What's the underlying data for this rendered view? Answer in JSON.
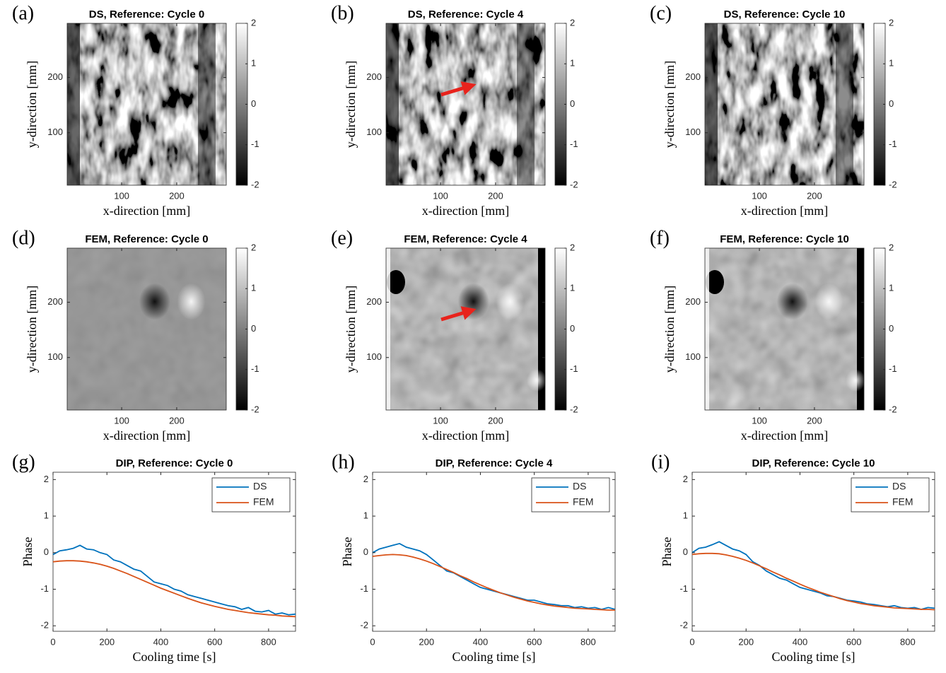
{
  "chart_data": [
    {
      "type": "heatmap",
      "panel": "(a)",
      "title": "DS, Reference: Cycle 0",
      "xlabel": "x-direction [mm]",
      "ylabel": "y-direction [mm]",
      "xlim": [
        1,
        290
      ],
      "ylim": [
        5,
        298
      ],
      "xticks": [
        100,
        200
      ],
      "yticks": [
        100,
        200
      ],
      "clim": [
        -2,
        2
      ],
      "cticks": [
        -2,
        -1,
        0,
        1,
        2
      ]
    },
    {
      "type": "heatmap",
      "panel": "(b)",
      "title": "DS, Reference: Cycle 4",
      "xlabel": "x-direction [mm]",
      "ylabel": "y-direction [mm]",
      "xlim": [
        1,
        290
      ],
      "ylim": [
        5,
        298
      ],
      "xticks": [
        100,
        200
      ],
      "yticks": [
        100,
        200
      ],
      "clim": [
        -2,
        2
      ],
      "cticks": [
        -2,
        -1,
        0,
        1,
        2
      ]
    },
    {
      "type": "heatmap",
      "panel": "(c)",
      "title": "DS, Reference: Cycle 10",
      "xlabel": "x-direction [mm]",
      "ylabel": "y-direction [mm]",
      "xlim": [
        1,
        290
      ],
      "ylim": [
        5,
        298
      ],
      "xticks": [
        100,
        200
      ],
      "yticks": [
        100,
        200
      ],
      "clim": [
        -2,
        2
      ],
      "cticks": [
        -2,
        -1,
        0,
        1,
        2
      ]
    },
    {
      "type": "heatmap",
      "panel": "(d)",
      "title": "FEM, Reference: Cycle 0",
      "xlabel": "x-direction [mm]",
      "ylabel": "y-direction [mm]",
      "xlim": [
        1,
        290
      ],
      "ylim": [
        5,
        298
      ],
      "xticks": [
        100,
        200
      ],
      "yticks": [
        100,
        200
      ],
      "clim": [
        -2,
        2
      ],
      "cticks": [
        -2,
        -1,
        0,
        1,
        2
      ]
    },
    {
      "type": "heatmap",
      "panel": "(e)",
      "title": "FEM, Reference: Cycle 4",
      "xlabel": "x-direction [mm]",
      "ylabel": "y-direction [mm]",
      "xlim": [
        1,
        290
      ],
      "ylim": [
        5,
        298
      ],
      "xticks": [
        100,
        200
      ],
      "yticks": [
        100,
        200
      ],
      "clim": [
        -2,
        2
      ],
      "cticks": [
        -2,
        -1,
        0,
        1,
        2
      ]
    },
    {
      "type": "heatmap",
      "panel": "(f)",
      "title": "FEM, Reference: Cycle 10",
      "xlabel": "x-direction [mm]",
      "ylabel": "y-direction [mm]",
      "xlim": [
        1,
        290
      ],
      "ylim": [
        5,
        298
      ],
      "xticks": [
        100,
        200
      ],
      "yticks": [
        100,
        200
      ],
      "clim": [
        -2,
        2
      ],
      "cticks": [
        -2,
        -1,
        0,
        1,
        2
      ]
    },
    {
      "type": "line",
      "panel": "(g)",
      "title": "DIP, Reference: Cycle 0",
      "xlabel": "Cooling time [s]",
      "ylabel": "Phase",
      "xlim": [
        0,
        900
      ],
      "ylim": [
        -2.15,
        2.2
      ],
      "xticks": [
        0,
        200,
        400,
        600,
        800
      ],
      "yticks": [
        -2,
        -1,
        0,
        1,
        2
      ],
      "legend": "upper right",
      "x": [
        0,
        25,
        50,
        75,
        100,
        125,
        150,
        175,
        200,
        225,
        250,
        275,
        300,
        325,
        350,
        375,
        400,
        425,
        450,
        475,
        500,
        525,
        550,
        575,
        600,
        625,
        650,
        675,
        700,
        725,
        750,
        775,
        800,
        825,
        850,
        875,
        900
      ],
      "series": [
        {
          "name": "DS",
          "color": "#0072BD",
          "values": [
            -0.05,
            0.05,
            0.08,
            0.12,
            0.2,
            0.1,
            0.08,
            0.0,
            -0.05,
            -0.2,
            -0.25,
            -0.35,
            -0.45,
            -0.5,
            -0.65,
            -0.8,
            -0.85,
            -0.9,
            -1.0,
            -1.05,
            -1.15,
            -1.2,
            -1.25,
            -1.3,
            -1.35,
            -1.4,
            -1.45,
            -1.48,
            -1.55,
            -1.5,
            -1.6,
            -1.62,
            -1.58,
            -1.68,
            -1.65,
            -1.7,
            -1.68
          ]
        },
        {
          "name": "FEM",
          "color": "#D95319",
          "values": [
            -0.25,
            -0.23,
            -0.22,
            -0.22,
            -0.23,
            -0.25,
            -0.28,
            -0.32,
            -0.37,
            -0.43,
            -0.5,
            -0.57,
            -0.65,
            -0.73,
            -0.81,
            -0.89,
            -0.97,
            -1.04,
            -1.11,
            -1.18,
            -1.25,
            -1.31,
            -1.37,
            -1.42,
            -1.47,
            -1.51,
            -1.55,
            -1.58,
            -1.61,
            -1.64,
            -1.66,
            -1.68,
            -1.7,
            -1.71,
            -1.73,
            -1.74,
            -1.75
          ]
        }
      ]
    },
    {
      "type": "line",
      "panel": "(h)",
      "title": "DIP, Reference: Cycle 4",
      "xlabel": "Cooling time [s]",
      "ylabel": "Phase",
      "xlim": [
        0,
        900
      ],
      "ylim": [
        -2.15,
        2.2
      ],
      "xticks": [
        0,
        200,
        400,
        600,
        800
      ],
      "yticks": [
        -2,
        -1,
        0,
        1,
        2
      ],
      "legend": "upper right",
      "x": [
        0,
        25,
        50,
        75,
        100,
        125,
        150,
        175,
        200,
        225,
        250,
        275,
        300,
        325,
        350,
        375,
        400,
        425,
        450,
        475,
        500,
        525,
        550,
        575,
        600,
        625,
        650,
        675,
        700,
        725,
        750,
        775,
        800,
        825,
        850,
        875,
        900
      ],
      "series": [
        {
          "name": "DS",
          "color": "#0072BD",
          "values": [
            0.0,
            0.1,
            0.15,
            0.2,
            0.25,
            0.15,
            0.1,
            0.05,
            -0.05,
            -0.2,
            -0.35,
            -0.5,
            -0.55,
            -0.65,
            -0.75,
            -0.85,
            -0.95,
            -1.0,
            -1.05,
            -1.1,
            -1.15,
            -1.2,
            -1.25,
            -1.3,
            -1.3,
            -1.35,
            -1.4,
            -1.42,
            -1.45,
            -1.45,
            -1.5,
            -1.48,
            -1.52,
            -1.5,
            -1.55,
            -1.5,
            -1.55
          ]
        },
        {
          "name": "FEM",
          "color": "#D95319",
          "values": [
            -0.1,
            -0.08,
            -0.06,
            -0.05,
            -0.06,
            -0.08,
            -0.12,
            -0.17,
            -0.23,
            -0.3,
            -0.38,
            -0.46,
            -0.54,
            -0.63,
            -0.71,
            -0.8,
            -0.88,
            -0.96,
            -1.03,
            -1.1,
            -1.16,
            -1.22,
            -1.27,
            -1.32,
            -1.36,
            -1.4,
            -1.43,
            -1.46,
            -1.48,
            -1.5,
            -1.52,
            -1.53,
            -1.54,
            -1.55,
            -1.56,
            -1.57,
            -1.57
          ]
        }
      ]
    },
    {
      "type": "line",
      "panel": "(i)",
      "title": "DIP, Reference: Cycle 10",
      "xlabel": "Cooling time [s]",
      "ylabel": "Phase",
      "xlim": [
        0,
        900
      ],
      "ylim": [
        -2.15,
        2.2
      ],
      "xticks": [
        0,
        200,
        400,
        600,
        800
      ],
      "yticks": [
        -2,
        -1,
        0,
        1,
        2
      ],
      "legend": "upper right",
      "x": [
        0,
        25,
        50,
        75,
        100,
        125,
        150,
        175,
        200,
        225,
        250,
        275,
        300,
        325,
        350,
        375,
        400,
        425,
        450,
        475,
        500,
        525,
        550,
        575,
        600,
        625,
        650,
        675,
        700,
        725,
        750,
        775,
        800,
        825,
        850,
        875,
        900
      ],
      "series": [
        {
          "name": "DS",
          "color": "#0072BD",
          "values": [
            0.0,
            0.12,
            0.15,
            0.22,
            0.3,
            0.2,
            0.1,
            0.05,
            -0.05,
            -0.25,
            -0.35,
            -0.5,
            -0.6,
            -0.7,
            -0.75,
            -0.85,
            -0.95,
            -1.0,
            -1.05,
            -1.1,
            -1.18,
            -1.2,
            -1.25,
            -1.3,
            -1.32,
            -1.35,
            -1.4,
            -1.42,
            -1.45,
            -1.48,
            -1.45,
            -1.5,
            -1.52,
            -1.5,
            -1.55,
            -1.5,
            -1.52
          ]
        },
        {
          "name": "FEM",
          "color": "#D95319",
          "values": [
            -0.05,
            -0.03,
            -0.02,
            -0.02,
            -0.03,
            -0.06,
            -0.1,
            -0.15,
            -0.21,
            -0.28,
            -0.36,
            -0.44,
            -0.53,
            -0.61,
            -0.7,
            -0.78,
            -0.86,
            -0.94,
            -1.01,
            -1.08,
            -1.14,
            -1.2,
            -1.26,
            -1.31,
            -1.35,
            -1.39,
            -1.42,
            -1.45,
            -1.47,
            -1.49,
            -1.51,
            -1.52,
            -1.53,
            -1.54,
            -1.55,
            -1.55,
            -1.56
          ]
        }
      ]
    }
  ]
}
